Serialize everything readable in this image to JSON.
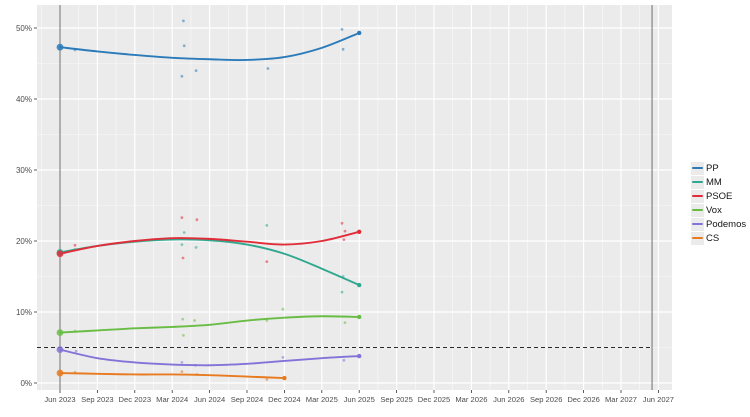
{
  "chart_data": {
    "type": "line",
    "title": "",
    "description": "Madrid polling chart: smoothed party trend lines with poll scatter points, 2023 election-result dots, 5% threshold dashed line and vertical election-date markers",
    "x_ticks": [
      "Jun 2023",
      "Sep 2023",
      "Dec 2023",
      "Mar 2024",
      "Jun 2024",
      "Sep 2024",
      "Dec 2024",
      "Mar 2025",
      "Jun 2025",
      "Sep 2025",
      "Dec 2025",
      "Mar 2026",
      "Jun 2026",
      "Sep 2026",
      "Dec 2026",
      "Mar 2027",
      "Jun 2027"
    ],
    "y_ticks": [
      "0%",
      "10%",
      "20%",
      "30%",
      "40%",
      "50%"
    ],
    "y_tick_values": [
      0,
      10,
      20,
      30,
      40,
      50
    ],
    "ylim": [
      0,
      53
    ],
    "grid": true,
    "legend_position": "right",
    "threshold": {
      "value_pct": 5,
      "style": "dashed",
      "color": "#2a2a2a"
    },
    "election_marker_quarters": [
      0,
      15.83
    ],
    "series": [
      {
        "name": "PP",
        "color": "#2b7bba",
        "election_result_pct": 47.3,
        "trend": [
          [
            0,
            47.3
          ],
          [
            1,
            46.7
          ],
          [
            2,
            46.2
          ],
          [
            3,
            45.8
          ],
          [
            4,
            45.6
          ],
          [
            5,
            45.5
          ],
          [
            6,
            45.9
          ],
          [
            7,
            47.2
          ],
          [
            8,
            49.3
          ]
        ],
        "polls": [
          [
            0.4,
            46.9
          ],
          [
            3.26,
            43.2
          ],
          [
            3.3,
            51.0
          ],
          [
            3.32,
            47.5
          ],
          [
            3.64,
            44.0
          ],
          [
            5.56,
            44.3
          ],
          [
            7.54,
            49.8
          ],
          [
            7.57,
            47.0
          ]
        ]
      },
      {
        "name": "MM",
        "color": "#30a890",
        "election_result_pct": 18.4,
        "trend": [
          [
            0,
            18.4
          ],
          [
            1,
            19.3
          ],
          [
            2,
            19.9
          ],
          [
            3,
            20.2
          ],
          [
            4,
            20.1
          ],
          [
            5,
            19.5
          ],
          [
            6,
            18.2
          ],
          [
            7,
            16.1
          ],
          [
            8,
            13.8
          ]
        ],
        "polls": [
          [
            0.4,
            18.8
          ],
          [
            3.26,
            19.5
          ],
          [
            3.32,
            21.2
          ],
          [
            3.64,
            19.1
          ],
          [
            5.53,
            22.2
          ],
          [
            7.54,
            12.8
          ],
          [
            7.57,
            15.0
          ]
        ]
      },
      {
        "name": "PSOE",
        "color": "#e02d39",
        "election_result_pct": 18.2,
        "trend": [
          [
            0,
            18.2
          ],
          [
            1,
            19.3
          ],
          [
            2,
            20.0
          ],
          [
            3,
            20.4
          ],
          [
            4,
            20.3
          ],
          [
            5,
            19.9
          ],
          [
            6,
            19.5
          ],
          [
            7,
            20.0
          ],
          [
            8,
            21.3
          ]
        ],
        "polls": [
          [
            0.4,
            19.4
          ],
          [
            3.26,
            23.3
          ],
          [
            3.29,
            17.6
          ],
          [
            3.66,
            23.0
          ],
          [
            5.53,
            17.1
          ],
          [
            7.54,
            22.5
          ],
          [
            7.59,
            20.2
          ],
          [
            7.62,
            21.4
          ]
        ]
      },
      {
        "name": "Vox",
        "color": "#69bd45",
        "election_result_pct": 7.1,
        "trend": [
          [
            0,
            7.1
          ],
          [
            1,
            7.4
          ],
          [
            2,
            7.7
          ],
          [
            3,
            7.9
          ],
          [
            4,
            8.2
          ],
          [
            5,
            8.8
          ],
          [
            6,
            9.2
          ],
          [
            7,
            9.4
          ],
          [
            8,
            9.3
          ]
        ],
        "polls": [
          [
            0.4,
            7.3
          ],
          [
            3.28,
            9.0
          ],
          [
            3.3,
            6.7
          ],
          [
            3.6,
            8.8
          ],
          [
            5.53,
            8.8
          ],
          [
            5.96,
            10.4
          ],
          [
            7.62,
            8.5
          ]
        ]
      },
      {
        "name": "Podemos",
        "color": "#8173d8",
        "election_result_pct": 4.7,
        "trend": [
          [
            0,
            4.7
          ],
          [
            1,
            3.5
          ],
          [
            2,
            2.9
          ],
          [
            3,
            2.6
          ],
          [
            4,
            2.5
          ],
          [
            5,
            2.7
          ],
          [
            6,
            3.1
          ],
          [
            7,
            3.5
          ],
          [
            8,
            3.8
          ]
        ],
        "polls": [
          [
            0.43,
            4.5
          ],
          [
            3.26,
            2.9
          ],
          [
            3.62,
            2.5
          ],
          [
            5.96,
            3.6
          ],
          [
            7.59,
            3.2
          ]
        ]
      },
      {
        "name": "CS",
        "color": "#e87a20",
        "election_result_pct": 1.4,
        "trend": [
          [
            0,
            1.4
          ],
          [
            1,
            1.3
          ],
          [
            2,
            1.2
          ],
          [
            3,
            1.2
          ],
          [
            4,
            1.1
          ],
          [
            5,
            0.9
          ],
          [
            6,
            0.7
          ]
        ],
        "polls": [
          [
            0.4,
            1.5
          ],
          [
            3.26,
            1.6
          ],
          [
            3.66,
            1.2
          ],
          [
            5.53,
            0.5
          ]
        ]
      }
    ]
  }
}
